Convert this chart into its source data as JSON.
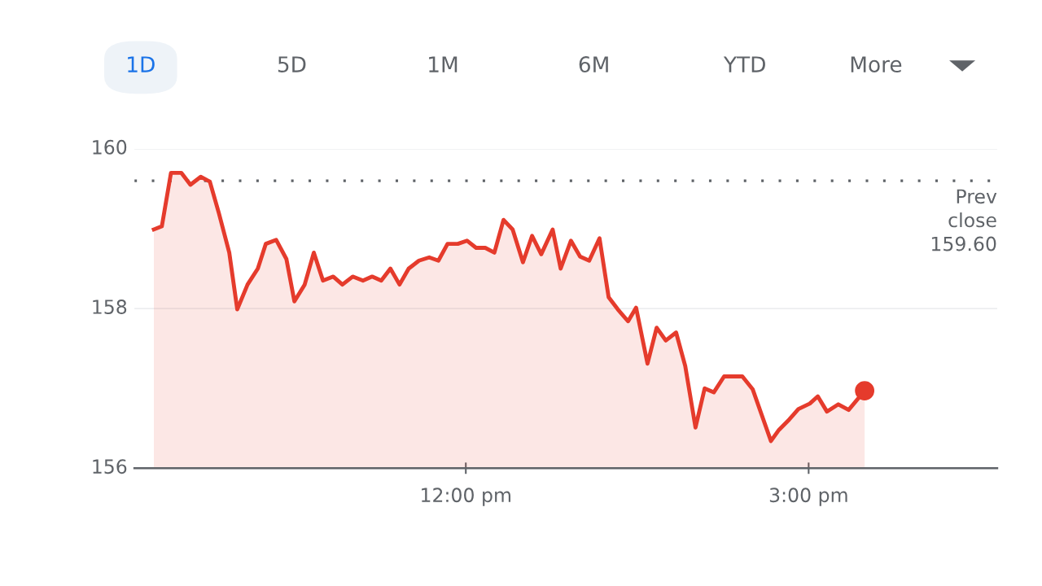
{
  "chart_data": {
    "type": "area",
    "x": [
      9.27,
      9.34,
      9.42,
      9.51,
      9.59,
      9.68,
      9.76,
      9.84,
      9.93,
      10.0,
      10.09,
      10.18,
      10.25,
      10.34,
      10.43,
      10.5,
      10.59,
      10.67,
      10.75,
      10.84,
      10.92,
      11.01,
      11.1,
      11.18,
      11.26,
      11.34,
      11.42,
      11.5,
      11.59,
      11.68,
      11.76,
      11.84,
      11.93,
      12.01,
      12.09,
      12.17,
      12.25,
      12.33,
      12.41,
      12.5,
      12.58,
      12.66,
      12.76,
      12.83,
      12.92,
      13.0,
      13.08,
      13.17,
      13.25,
      13.33,
      13.42,
      13.49,
      13.59,
      13.67,
      13.75,
      13.84,
      13.92,
      14.01,
      14.09,
      14.17,
      14.26,
      14.42,
      14.51,
      14.67,
      14.74,
      14.83,
      14.91,
      15.01,
      15.08,
      15.16,
      15.26,
      15.35,
      15.49
    ],
    "series": [
      {
        "color": "#e53b2c",
        "values": [
          158.99,
          159.03,
          159.7,
          159.7,
          159.55,
          159.65,
          159.59,
          159.19,
          158.7,
          157.99,
          158.3,
          158.5,
          158.81,
          158.86,
          158.62,
          158.09,
          158.3,
          158.7,
          158.35,
          158.4,
          158.3,
          158.4,
          158.35,
          158.4,
          158.35,
          158.5,
          158.3,
          158.5,
          158.6,
          158.64,
          158.6,
          158.81,
          158.81,
          158.85,
          158.76,
          158.76,
          158.7,
          159.11,
          158.99,
          158.58,
          158.91,
          158.68,
          158.99,
          158.5,
          158.85,
          158.65,
          158.6,
          158.88,
          158.14,
          157.99,
          157.84,
          158.01,
          157.31,
          157.76,
          157.6,
          157.7,
          157.28,
          156.51,
          157.0,
          156.95,
          157.15,
          157.15,
          156.99,
          156.34,
          156.48,
          156.61,
          156.74,
          156.81,
          156.9,
          156.71,
          156.8,
          156.73,
          156.97
        ]
      },
      {
        "type": "scatter",
        "color": "#e53b2c",
        "marker": "circle",
        "x": [
          15.49
        ],
        "values": [
          156.97
        ]
      }
    ],
    "xlim": [
      9.1,
      16.65
    ],
    "ylim": [
      156,
      160
    ],
    "xticks": [
      {
        "value": 12,
        "label": "12:00 pm"
      },
      {
        "value": 15,
        "label": "3:00 pm"
      }
    ],
    "yticks": [
      156,
      158,
      160
    ],
    "grid": "y",
    "legend": false,
    "line_style": "solid",
    "ref_lines": [
      {
        "axis": "y",
        "value": 159.6,
        "label": "Prev\nclose\n159.60",
        "color": "#5f6368",
        "line_style": "dotted"
      }
    ],
    "annotations": [
      "1D",
      "5D",
      "1M",
      "6M",
      "YTD",
      "More"
    ]
  }
}
